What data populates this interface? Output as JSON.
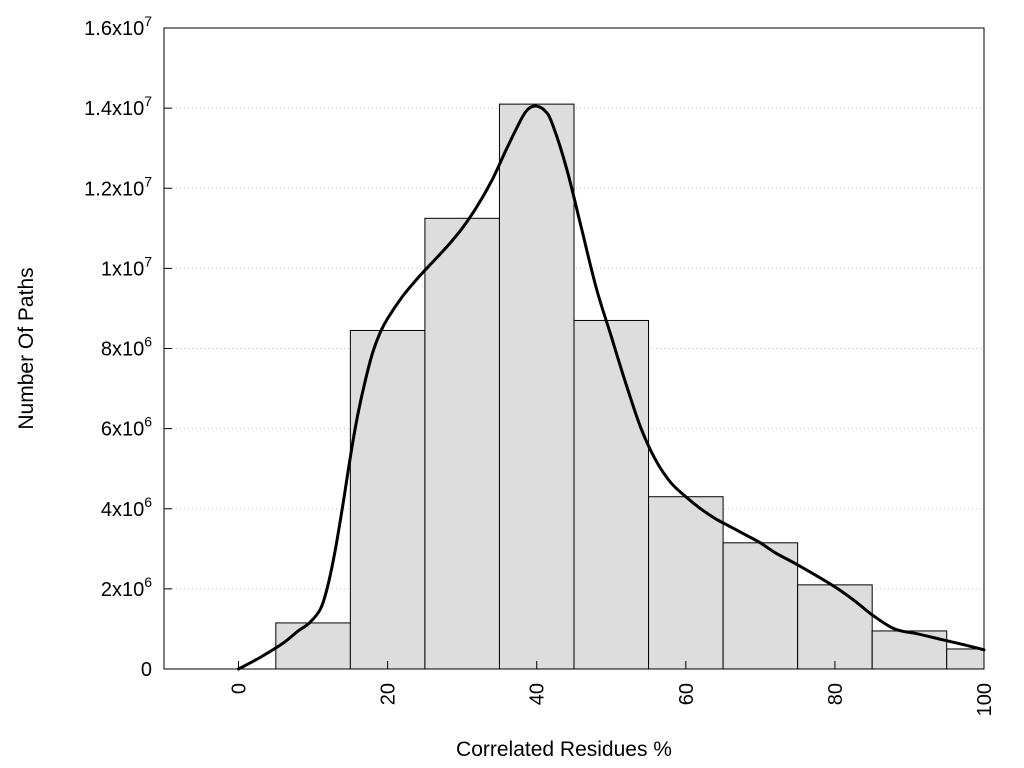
{
  "chart_data": {
    "type": "bar",
    "title": "",
    "xlabel": "Correlated Residues %",
    "ylabel": "Number Of Paths",
    "xlim": [
      -10,
      100
    ],
    "ylim": [
      0,
      16000000
    ],
    "grid": "horizontal dotted",
    "legend": "none",
    "bar_color": "#dddddd",
    "bar_edge_color": "#000000",
    "bins": [
      {
        "from": 5,
        "to": 15,
        "value": 1150000
      },
      {
        "from": 15,
        "to": 25,
        "value": 8450000
      },
      {
        "from": 25,
        "to": 35,
        "value": 11250000
      },
      {
        "from": 35,
        "to": 45,
        "value": 14100000
      },
      {
        "from": 45,
        "to": 55,
        "value": 8700000
      },
      {
        "from": 55,
        "to": 65,
        "value": 4300000
      },
      {
        "from": 65,
        "to": 75,
        "value": 3150000
      },
      {
        "from": 75,
        "to": 85,
        "value": 2100000
      },
      {
        "from": 85,
        "to": 95,
        "value": 950000
      },
      {
        "from": 95,
        "to": 100,
        "value": 500000
      }
    ],
    "curve": {
      "x": [
        0,
        3,
        6,
        8,
        9.5,
        11,
        12,
        13,
        14,
        15,
        16,
        17,
        18,
        19,
        20,
        22,
        24,
        26,
        28,
        30,
        32,
        34,
        36,
        38,
        39,
        40,
        41,
        42,
        44,
        46,
        48,
        50,
        52,
        54,
        56,
        58,
        60,
        62,
        64,
        66,
        68,
        70,
        72,
        75,
        80,
        83,
        85,
        88,
        91,
        94,
        97,
        100
      ],
      "y": [
        0,
        300000,
        650000,
        950000,
        1150000,
        1500000,
        2100000,
        3000000,
        4100000,
        5300000,
        6350000,
        7200000,
        7900000,
        8400000,
        8750000,
        9300000,
        9750000,
        10150000,
        10550000,
        11000000,
        11550000,
        12200000,
        13000000,
        13750000,
        14000000,
        14050000,
        13950000,
        13650000,
        12500000,
        11000000,
        9500000,
        8300000,
        7100000,
        6000000,
        5200000,
        4650000,
        4300000,
        4000000,
        3750000,
        3550000,
        3350000,
        3150000,
        2900000,
        2600000,
        2050000,
        1650000,
        1350000,
        1000000,
        880000,
        750000,
        620000,
        480000
      ]
    },
    "x_ticks": [
      {
        "value": 0,
        "label": "0"
      },
      {
        "value": 20,
        "label": "20"
      },
      {
        "value": 40,
        "label": "40"
      },
      {
        "value": 60,
        "label": "60"
      },
      {
        "value": 80,
        "label": "80"
      },
      {
        "value": 100,
        "label": "100"
      }
    ],
    "y_ticks": [
      {
        "value": 0,
        "mant": "0",
        "exp": ""
      },
      {
        "value": 2000000,
        "mant": "2x10",
        "exp": "6"
      },
      {
        "value": 4000000,
        "mant": "4x10",
        "exp": "6"
      },
      {
        "value": 6000000,
        "mant": "6x10",
        "exp": "6"
      },
      {
        "value": 8000000,
        "mant": "8x10",
        "exp": "6"
      },
      {
        "value": 10000000,
        "mant": "1x10",
        "exp": "7"
      },
      {
        "value": 12000000,
        "mant": "1.2x10",
        "exp": "7"
      },
      {
        "value": 14000000,
        "mant": "1.4x10",
        "exp": "7"
      },
      {
        "value": 16000000,
        "mant": "1.6x10",
        "exp": "7"
      }
    ]
  }
}
